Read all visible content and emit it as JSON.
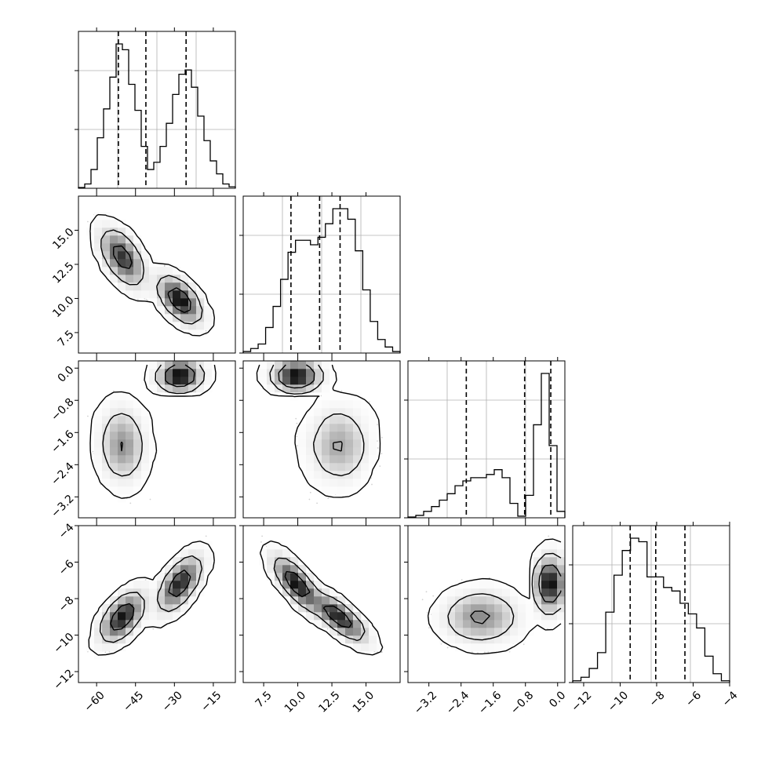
{
  "chart_data": {
    "type": "corner",
    "title": "",
    "parameters": [
      "",
      "",
      "",
      ""
    ],
    "ranges": [
      [
        -67,
        -6.5
      ],
      [
        6.0,
        17.5
      ],
      [
        -3.72,
        0.18
      ],
      [
        -12.6,
        -4.0
      ]
    ],
    "ticks": [
      {
        "values": [
          -60,
          -45,
          -30,
          -15
        ],
        "labels": [
          "−60",
          "−45",
          "−30",
          "−15"
        ]
      },
      {
        "values": [
          7.5,
          10.0,
          12.5,
          15.0
        ],
        "labels": [
          "7.5",
          "10.0",
          "12.5",
          "15.0"
        ]
      },
      {
        "values": [
          -3.2,
          -2.4,
          -1.6,
          -0.8,
          0.0
        ],
        "labels": [
          "−3.2",
          "−2.4",
          "−1.6",
          "−0.8",
          "0.0"
        ]
      },
      {
        "values": [
          -12,
          -10,
          -8,
          -6,
          -4
        ],
        "labels": [
          "−12",
          "−10",
          "−8",
          "−6",
          "−4"
        ]
      }
    ],
    "histograms": [
      {
        "counts": [
          0.5,
          3,
          13,
          35,
          55,
          77,
          100,
          96,
          72,
          54,
          29,
          13,
          18,
          29,
          45,
          65,
          79,
          82,
          70,
          50,
          33,
          19,
          10,
          3,
          1
        ],
        "quantiles": [
          -51.6,
          -41.0,
          -25.5
        ]
      },
      {
        "counts": [
          1,
          3,
          6,
          17,
          31,
          49,
          67,
          75,
          75,
          72,
          77,
          86,
          96,
          96,
          89,
          68,
          42,
          21,
          9,
          4,
          1
        ],
        "quantiles": [
          9.5,
          11.6,
          13.1
        ]
      },
      {
        "counts": [
          0.5,
          1.5,
          4,
          7,
          11,
          15,
          20,
          23,
          25,
          25,
          27,
          30,
          25,
          9,
          1,
          14,
          58,
          90,
          45,
          4
        ],
        "quantiles": [
          -2.27,
          -0.82,
          -0.17
        ]
      },
      {
        "counts": [
          1,
          3,
          8,
          17,
          40,
          61,
          75,
          82,
          80,
          60,
          60,
          54,
          52,
          45,
          39,
          31,
          15,
          5,
          1
        ],
        "quantiles": [
          -9.45,
          -8.05,
          -6.45
        ]
      }
    ],
    "contour_levels": [
      0.39,
      0.86,
      0.99
    ],
    "modes": [
      {
        "weight": 0.5,
        "mean": [
          -50,
          13.0,
          -1.9,
          -9.0
        ],
        "sd": [
          3.5,
          0.95,
          0.42,
          0.6
        ]
      },
      {
        "weight": 0.5,
        "mean": [
          -28,
          9.9,
          -0.2,
          -7.2
        ],
        "sd": [
          3.5,
          0.75,
          0.09,
          0.7
        ]
      }
    ],
    "grid": true,
    "legend": "none"
  }
}
